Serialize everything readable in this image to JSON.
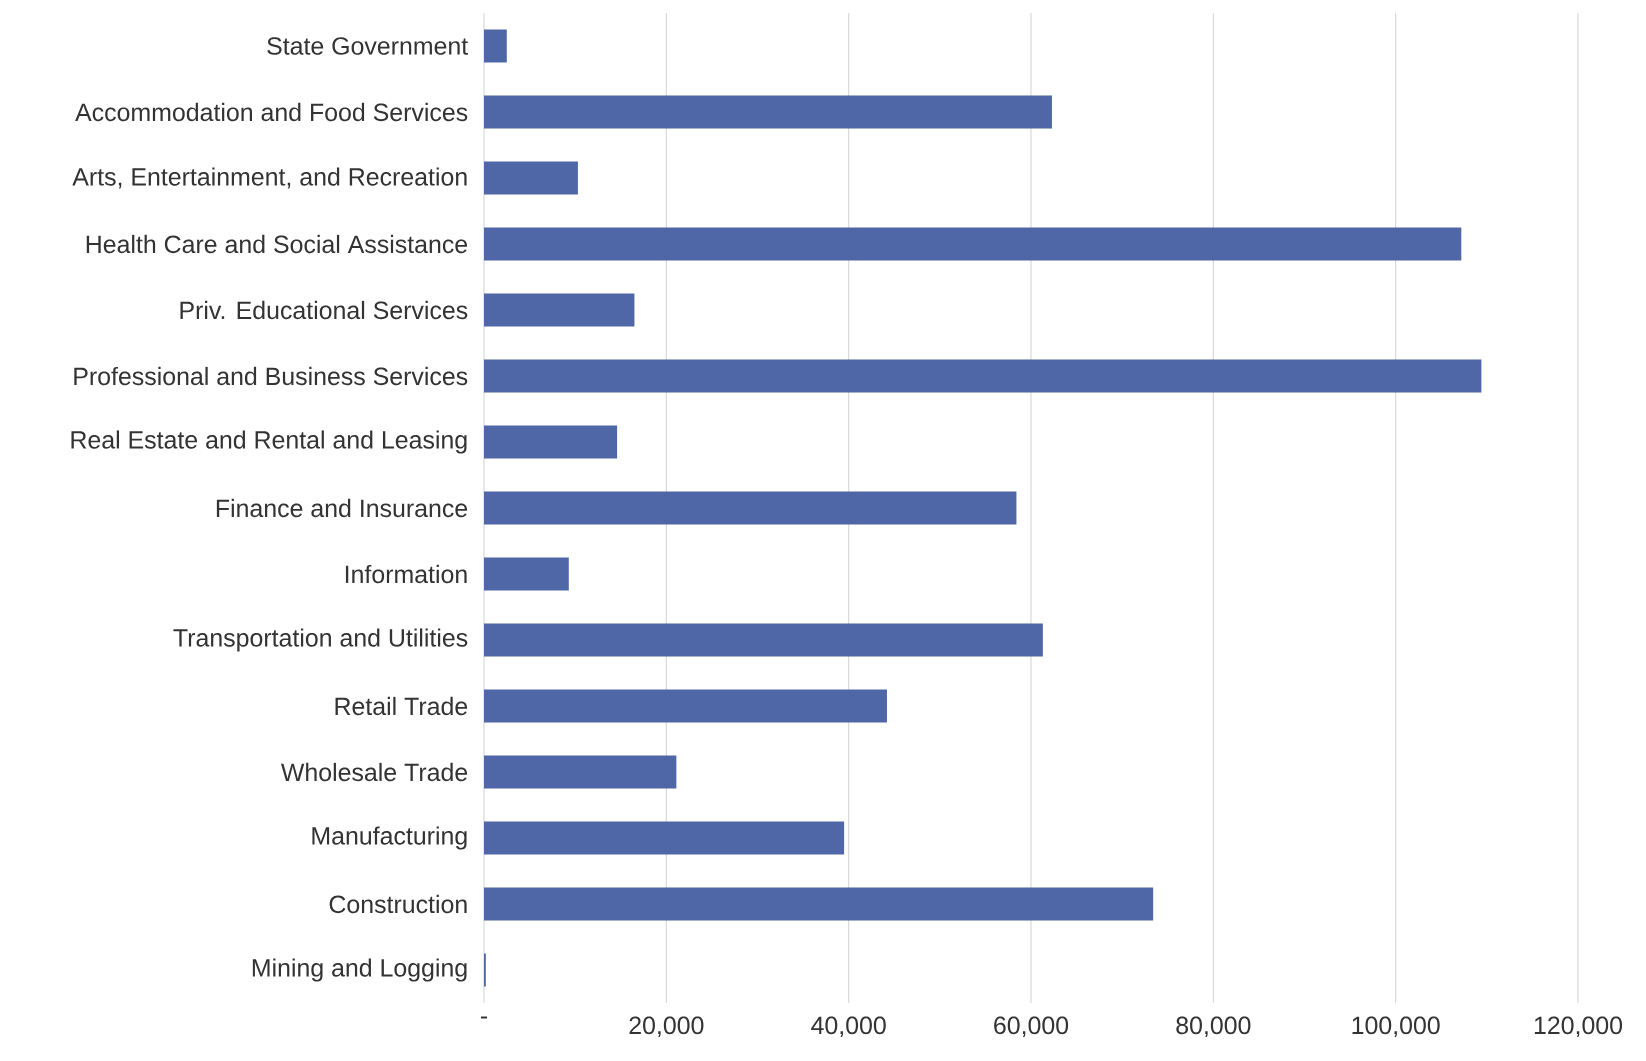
{
  "chart_data": {
    "type": "bar",
    "orientation": "horizontal",
    "color": "#4f67a6",
    "categories": [
      "State Government",
      "Accommodation and Food Services",
      "Arts, Entertainment, and Recreation",
      "Health Care and Social Assistance",
      "Priv. Educational Services",
      "Professional and Business Services",
      "Real Estate and Rental and Leasing",
      "Finance and Insurance",
      "Information",
      "Transportation and Utilities",
      "Retail Trade",
      "Wholesale Trade",
      "Manufacturing",
      "Construction",
      "Mining and Logging"
    ],
    "values": [
      2500,
      62300,
      10300,
      107200,
      16500,
      109400,
      14600,
      58400,
      9300,
      61300,
      44200,
      21100,
      39500,
      73400,
      200
    ],
    "xlim": [
      0,
      120000
    ],
    "xticks": [
      {
        "value": 0,
        "label": "-"
      },
      {
        "value": 20000,
        "label": "20,000"
      },
      {
        "value": 40000,
        "label": "40,000"
      },
      {
        "value": 60000,
        "label": "60,000"
      },
      {
        "value": 80000,
        "label": "80,000"
      },
      {
        "value": 100000,
        "label": "100,000"
      },
      {
        "value": 120000,
        "label": "120,000"
      }
    ],
    "grid": "x"
  }
}
